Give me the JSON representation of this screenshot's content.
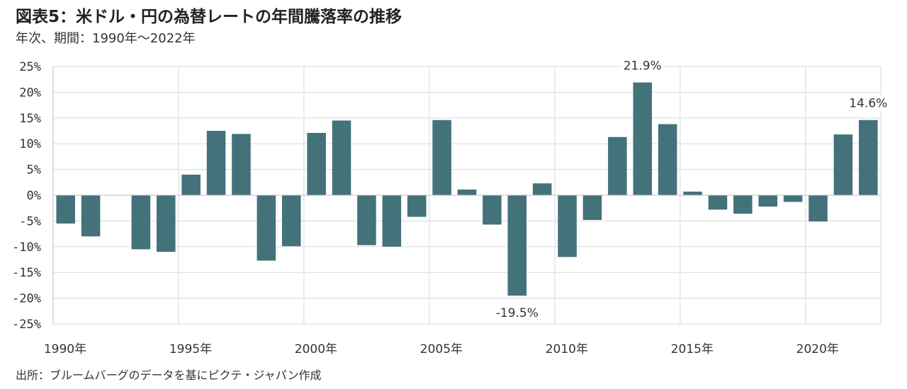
{
  "title": "図表5：米ドル・円の為替レートの年間騰落率の推移",
  "subtitle": "年次、期間：1990年〜2022年",
  "source": "出所：ブルームバーグのデータを基にピクテ・ジャパン作成",
  "colors": {
    "bar": "#43727a",
    "grid": "#d9d9d9",
    "axis": "#bfbfbf"
  },
  "chart_data": {
    "type": "bar",
    "categories": [
      1990,
      1991,
      1992,
      1993,
      1994,
      1995,
      1996,
      1997,
      1998,
      1999,
      2000,
      2001,
      2002,
      2003,
      2004,
      2005,
      2006,
      2007,
      2008,
      2009,
      2010,
      2011,
      2012,
      2013,
      2014,
      2015,
      2016,
      2017,
      2018,
      2019,
      2020,
      2021,
      2022
    ],
    "values": [
      -5.5,
      -8.0,
      0,
      -10.5,
      -11.0,
      4.0,
      12.5,
      11.9,
      -12.7,
      -9.9,
      12.1,
      14.5,
      -9.7,
      -10.0,
      -4.2,
      14.6,
      1.1,
      -5.7,
      -19.5,
      2.3,
      -12.0,
      -4.8,
      11.3,
      21.9,
      13.8,
      0.7,
      -2.8,
      -3.6,
      -2.2,
      -1.3,
      -5.1,
      11.8,
      14.6
    ],
    "ylim": [
      -25,
      25
    ],
    "yticks": [
      25,
      20,
      15,
      10,
      5,
      0,
      -5,
      -10,
      -15,
      -20,
      -25
    ],
    "ytick_labels": [
      "25%",
      "20%",
      "15%",
      "10%",
      "5%",
      "0%",
      "-5%",
      "-10%",
      "-15%",
      "-20%",
      "-25%"
    ],
    "xtick_years": [
      1990,
      1995,
      2000,
      2005,
      2010,
      2015,
      2020
    ],
    "xtick_labels": [
      "1990年",
      "1995年",
      "2000年",
      "2005年",
      "2010年",
      "2015年",
      "2020年"
    ],
    "annotations": [
      {
        "year": 2013,
        "label": "21.9%"
      },
      {
        "year": 2008,
        "label": "-19.5%"
      },
      {
        "year": 2022,
        "label": "14.6%"
      }
    ],
    "grid": true,
    "legend": "none"
  }
}
